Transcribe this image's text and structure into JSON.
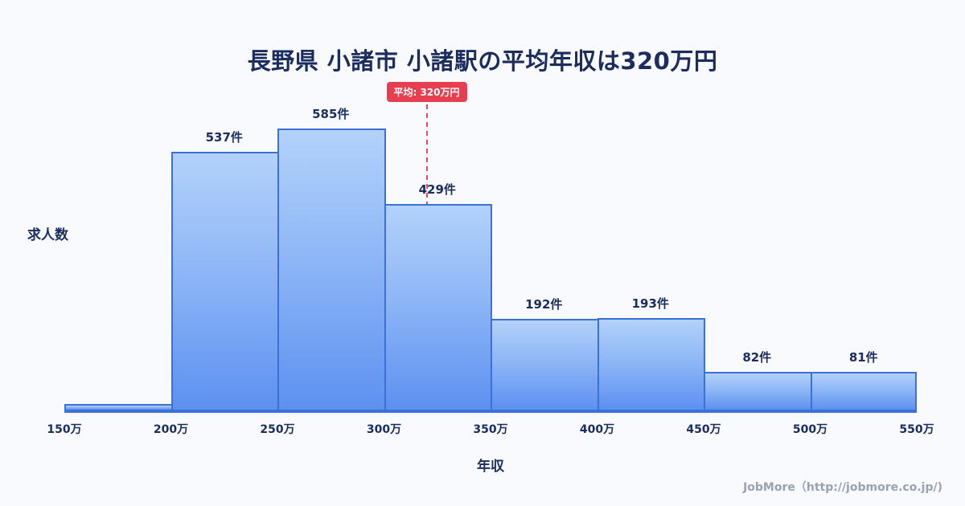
{
  "chart_data": {
    "type": "bar",
    "title": "長野県 小諸市 小諸駅の平均年収は320万円",
    "xlabel": "年収",
    "ylabel": "求人数",
    "x_ticks": [
      "150万",
      "200万",
      "250万",
      "300万",
      "350万",
      "400万",
      "450万",
      "500万",
      "550万"
    ],
    "bin_edges_man_yen": [
      150,
      200,
      250,
      300,
      350,
      400,
      450,
      500,
      550
    ],
    "values": [
      15,
      537,
      585,
      429,
      192,
      193,
      82,
      81
    ],
    "bar_labels": [
      "",
      "537件",
      "585件",
      "429件",
      "192件",
      "193件",
      "82件",
      "81件"
    ],
    "average": {
      "value_man_yen": 320,
      "label": "平均: 320万円"
    },
    "ylim": [
      0,
      685
    ],
    "grid": false,
    "legend": "none",
    "colors": {
      "bar_fill_top": "#b3d2fa",
      "bar_fill_bottom": "#5d90f0",
      "bar_border": "#3b70d6",
      "axis_line": "#3b72d8",
      "average_line": "#e8485a",
      "average_badge_bg": "#e83f50",
      "text": "#1b2c5e",
      "background": "#f8fafd"
    }
  },
  "footer": {
    "credit": "JobMore（http://jobmore.co.jp/)"
  }
}
